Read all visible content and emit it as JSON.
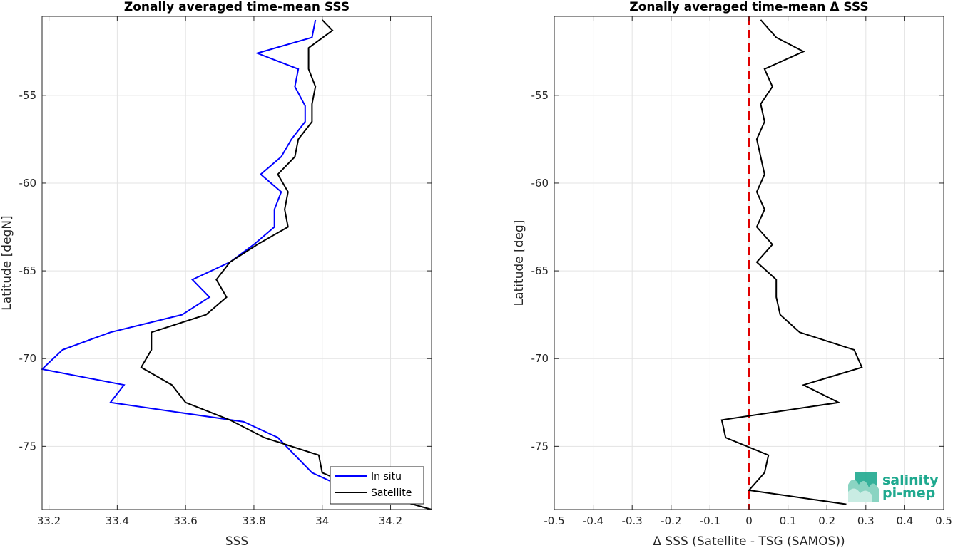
{
  "chart_data": [
    {
      "type": "line",
      "title": "Zonally averaged time-mean SSS",
      "xlabel": "SSS",
      "ylabel": "Latitude [degN]",
      "xlim": [
        33.18,
        34.32
      ],
      "ylim": [
        -78.6,
        -50.5
      ],
      "xticks": [
        33.2,
        33.4,
        33.6,
        33.8,
        34,
        34.2
      ],
      "xtick_labels": [
        "33.2",
        "33.4",
        "33.6",
        "33.8",
        "34",
        "34.2"
      ],
      "yticks": [
        -55,
        -60,
        -65,
        -70,
        -75
      ],
      "ytick_labels": [
        "-55",
        "-60",
        "-65",
        "-70",
        "-75"
      ],
      "grid": true,
      "legend_position": "bottom-right",
      "series": [
        {
          "name": "In situ",
          "color": "#0000ff",
          "points": [
            [
              33.98,
              -50.7
            ],
            [
              33.97,
              -51.7
            ],
            [
              33.81,
              -52.6
            ],
            [
              33.93,
              -53.5
            ],
            [
              33.92,
              -54.5
            ],
            [
              33.95,
              -55.6
            ],
            [
              33.95,
              -56.5
            ],
            [
              33.91,
              -57.5
            ],
            [
              33.88,
              -58.5
            ],
            [
              33.82,
              -59.5
            ],
            [
              33.88,
              -60.5
            ],
            [
              33.86,
              -61.5
            ],
            [
              33.86,
              -62.5
            ],
            [
              33.8,
              -63.5
            ],
            [
              33.73,
              -64.5
            ],
            [
              33.62,
              -65.5
            ],
            [
              33.67,
              -66.5
            ],
            [
              33.59,
              -67.5
            ],
            [
              33.38,
              -68.5
            ],
            [
              33.24,
              -69.5
            ],
            [
              33.18,
              -70.6
            ],
            [
              33.42,
              -71.5
            ],
            [
              33.38,
              -72.5
            ],
            [
              33.77,
              -73.6
            ],
            [
              33.87,
              -74.5
            ],
            [
              33.92,
              -75.5
            ],
            [
              33.97,
              -76.5
            ],
            [
              34.07,
              -77.4
            ],
            [
              34.08,
              -78.2
            ]
          ]
        },
        {
          "name": "Satellite",
          "color": "#000000",
          "points": [
            [
              34.0,
              -50.7
            ],
            [
              34.03,
              -51.3
            ],
            [
              33.96,
              -52.3
            ],
            [
              33.96,
              -53.5
            ],
            [
              33.98,
              -54.5
            ],
            [
              33.97,
              -55.5
            ],
            [
              33.97,
              -56.5
            ],
            [
              33.93,
              -57.5
            ],
            [
              33.92,
              -58.5
            ],
            [
              33.87,
              -59.5
            ],
            [
              33.9,
              -60.5
            ],
            [
              33.89,
              -61.5
            ],
            [
              33.9,
              -62.5
            ],
            [
              33.81,
              -63.5
            ],
            [
              33.73,
              -64.5
            ],
            [
              33.69,
              -65.5
            ],
            [
              33.72,
              -66.5
            ],
            [
              33.66,
              -67.5
            ],
            [
              33.5,
              -68.5
            ],
            [
              33.5,
              -69.5
            ],
            [
              33.47,
              -70.5
            ],
            [
              33.56,
              -71.5
            ],
            [
              33.6,
              -72.5
            ],
            [
              33.73,
              -73.5
            ],
            [
              33.83,
              -74.5
            ],
            [
              33.99,
              -75.5
            ],
            [
              34.0,
              -76.5
            ],
            [
              34.12,
              -77.5
            ],
            [
              34.32,
              -78.6
            ]
          ]
        }
      ]
    },
    {
      "type": "line",
      "title": "Zonally averaged time-mean Δ SSS",
      "xlabel": "Δ SSS (Satellite - TSG (SAMOS))",
      "ylabel": "Latitude [deg]",
      "xlim": [
        -0.5,
        0.5
      ],
      "ylim": [
        -78.6,
        -50.5
      ],
      "xticks": [
        -0.5,
        -0.4,
        -0.3,
        -0.2,
        -0.1,
        0,
        0.1,
        0.2,
        0.3,
        0.4,
        0.5
      ],
      "xtick_labels": [
        "-0.5",
        "-0.4",
        "-0.3",
        "-0.2",
        "-0.1",
        "0",
        "0.1",
        "0.2",
        "0.3",
        "0.4",
        "0.5"
      ],
      "yticks": [
        -55,
        -60,
        -65,
        -70,
        -75
      ],
      "ytick_labels": [
        "-55",
        "-60",
        "-65",
        "-70",
        "-75"
      ],
      "grid": true,
      "reference_line": {
        "x": 0,
        "color": "#e00000",
        "style": "dashed"
      },
      "series": [
        {
          "name": "",
          "color": "#000000",
          "points": [
            [
              0.03,
              -50.7
            ],
            [
              0.07,
              -51.7
            ],
            [
              0.14,
              -52.5
            ],
            [
              0.04,
              -53.5
            ],
            [
              0.06,
              -54.5
            ],
            [
              0.03,
              -55.5
            ],
            [
              0.04,
              -56.5
            ],
            [
              0.02,
              -57.5
            ],
            [
              0.04,
              -59.5
            ],
            [
              0.02,
              -60.5
            ],
            [
              0.04,
              -61.5
            ],
            [
              0.02,
              -62.5
            ],
            [
              0.06,
              -63.5
            ],
            [
              0.02,
              -64.5
            ],
            [
              0.07,
              -65.5
            ],
            [
              0.07,
              -66.5
            ],
            [
              0.08,
              -67.5
            ],
            [
              0.13,
              -68.5
            ],
            [
              0.27,
              -69.5
            ],
            [
              0.29,
              -70.5
            ],
            [
              0.14,
              -71.5
            ],
            [
              0.23,
              -72.5
            ],
            [
              -0.07,
              -73.5
            ],
            [
              -0.06,
              -74.5
            ],
            [
              0.05,
              -75.5
            ],
            [
              0.04,
              -76.5
            ],
            [
              0.0,
              -77.5
            ],
            [
              0.25,
              -78.3
            ]
          ]
        }
      ]
    }
  ],
  "logo": {
    "line1": "salinity",
    "line2": "pi-mep",
    "color": "#1fa98f"
  }
}
